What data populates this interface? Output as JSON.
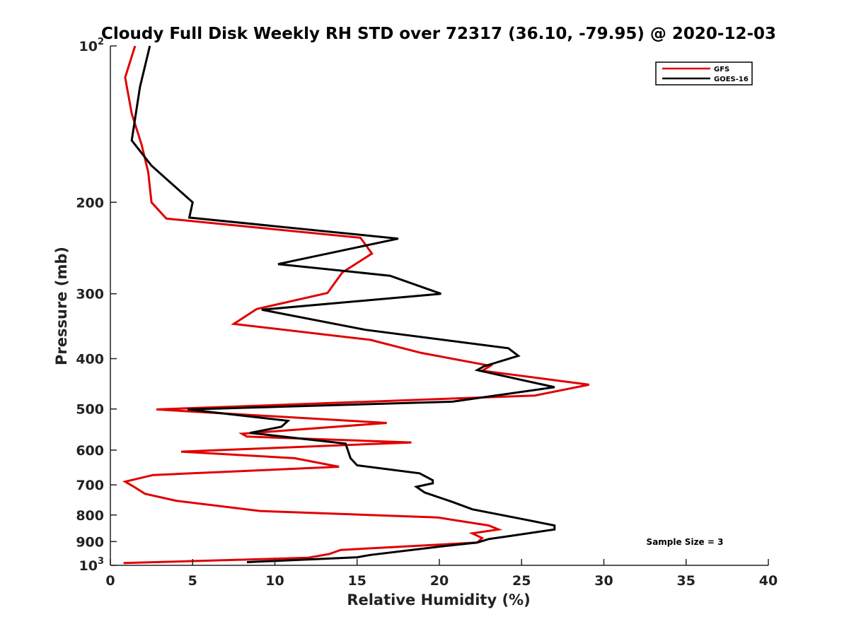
{
  "chart_data": {
    "type": "line",
    "title": "Cloudy Full Disk Weekly RH STD over 72317 (36.10, -79.95) @ 2020-12-03",
    "xlabel": "Relative Humidity (%)",
    "ylabel": "Pressure (mb)",
    "xlim": [
      0,
      40
    ],
    "ylim": [
      100,
      1000
    ],
    "y_scale": "log",
    "y_reversed": true,
    "x_ticks": [
      0,
      5,
      10,
      15,
      20,
      25,
      30,
      35,
      40
    ],
    "y_ticks": [
      {
        "value": 100,
        "label": "10",
        "sup": "2"
      },
      {
        "value": 200,
        "label": "200"
      },
      {
        "value": 300,
        "label": "300"
      },
      {
        "value": 400,
        "label": "400"
      },
      {
        "value": 500,
        "label": "500"
      },
      {
        "value": 600,
        "label": "600"
      },
      {
        "value": 700,
        "label": "700"
      },
      {
        "value": 800,
        "label": "800"
      },
      {
        "value": 900,
        "label": "900"
      },
      {
        "value": 1000,
        "label": "10",
        "sup": "3"
      }
    ],
    "grid": false,
    "legend_position": "top-right",
    "annotation": "Sample Size = 3",
    "series": [
      {
        "name": "GFS",
        "color": "#e00000",
        "points": [
          [
            1.5,
            100
          ],
          [
            0.9,
            115
          ],
          [
            1.3,
            135
          ],
          [
            1.9,
            155
          ],
          [
            2.3,
            175
          ],
          [
            2.5,
            200
          ],
          [
            3.4,
            215
          ],
          [
            15.2,
            234
          ],
          [
            15.9,
            251
          ],
          [
            14.1,
            273
          ],
          [
            13.2,
            299
          ],
          [
            8.9,
            321
          ],
          [
            7.5,
            343
          ],
          [
            15.8,
            368
          ],
          [
            18.9,
            390
          ],
          [
            23.1,
            413
          ],
          [
            22.6,
            422
          ],
          [
            29.1,
            449
          ],
          [
            25.8,
            471
          ],
          [
            2.8,
            501
          ],
          [
            16.8,
            532
          ],
          [
            8.0,
            558
          ],
          [
            8.3,
            565
          ],
          [
            18.3,
            580
          ],
          [
            4.3,
            604
          ],
          [
            11.2,
            622
          ],
          [
            13.9,
            646
          ],
          [
            2.6,
            670
          ],
          [
            0.9,
            690
          ],
          [
            1.4,
            705
          ],
          [
            2.1,
            728
          ],
          [
            4.0,
            751
          ],
          [
            9.1,
            786
          ],
          [
            19.9,
            809
          ],
          [
            23.0,
            838
          ],
          [
            23.6,
            853
          ],
          [
            22.0,
            868
          ],
          [
            22.6,
            886
          ],
          [
            22.3,
            904
          ],
          [
            14.0,
            934
          ],
          [
            13.3,
            951
          ],
          [
            12.0,
            967
          ],
          [
            0.8,
            990
          ]
        ]
      },
      {
        "name": "GOES-16",
        "color": "#000000",
        "points": [
          [
            2.4,
            100
          ],
          [
            1.8,
            120
          ],
          [
            1.3,
            152
          ],
          [
            2.5,
            170
          ],
          [
            3.8,
            185
          ],
          [
            5.0,
            200
          ],
          [
            4.8,
            214
          ],
          [
            17.5,
            235
          ],
          [
            10.2,
            263
          ],
          [
            17.0,
            277
          ],
          [
            20.1,
            300
          ],
          [
            9.2,
            322
          ],
          [
            15.5,
            352
          ],
          [
            24.2,
            382
          ],
          [
            24.8,
            395
          ],
          [
            22.7,
            414
          ],
          [
            22.3,
            421
          ],
          [
            27.0,
            454
          ],
          [
            20.8,
            484
          ],
          [
            4.7,
            501
          ],
          [
            10.8,
            527
          ],
          [
            10.4,
            541
          ],
          [
            8.5,
            556
          ],
          [
            14.3,
            583
          ],
          [
            14.6,
            622
          ],
          [
            15.0,
            642
          ],
          [
            18.8,
            665
          ],
          [
            19.6,
            686
          ],
          [
            19.6,
            695
          ],
          [
            18.6,
            706
          ],
          [
            19.1,
            724
          ],
          [
            20.8,
            755
          ],
          [
            22.0,
            780
          ],
          [
            25.0,
            814
          ],
          [
            27.0,
            838
          ],
          [
            27.0,
            853
          ],
          [
            24.4,
            877
          ],
          [
            23.0,
            890
          ],
          [
            22.3,
            904
          ],
          [
            20.2,
            919
          ],
          [
            15.8,
            955
          ],
          [
            15.0,
            965
          ],
          [
            8.3,
            986
          ]
        ]
      }
    ]
  }
}
